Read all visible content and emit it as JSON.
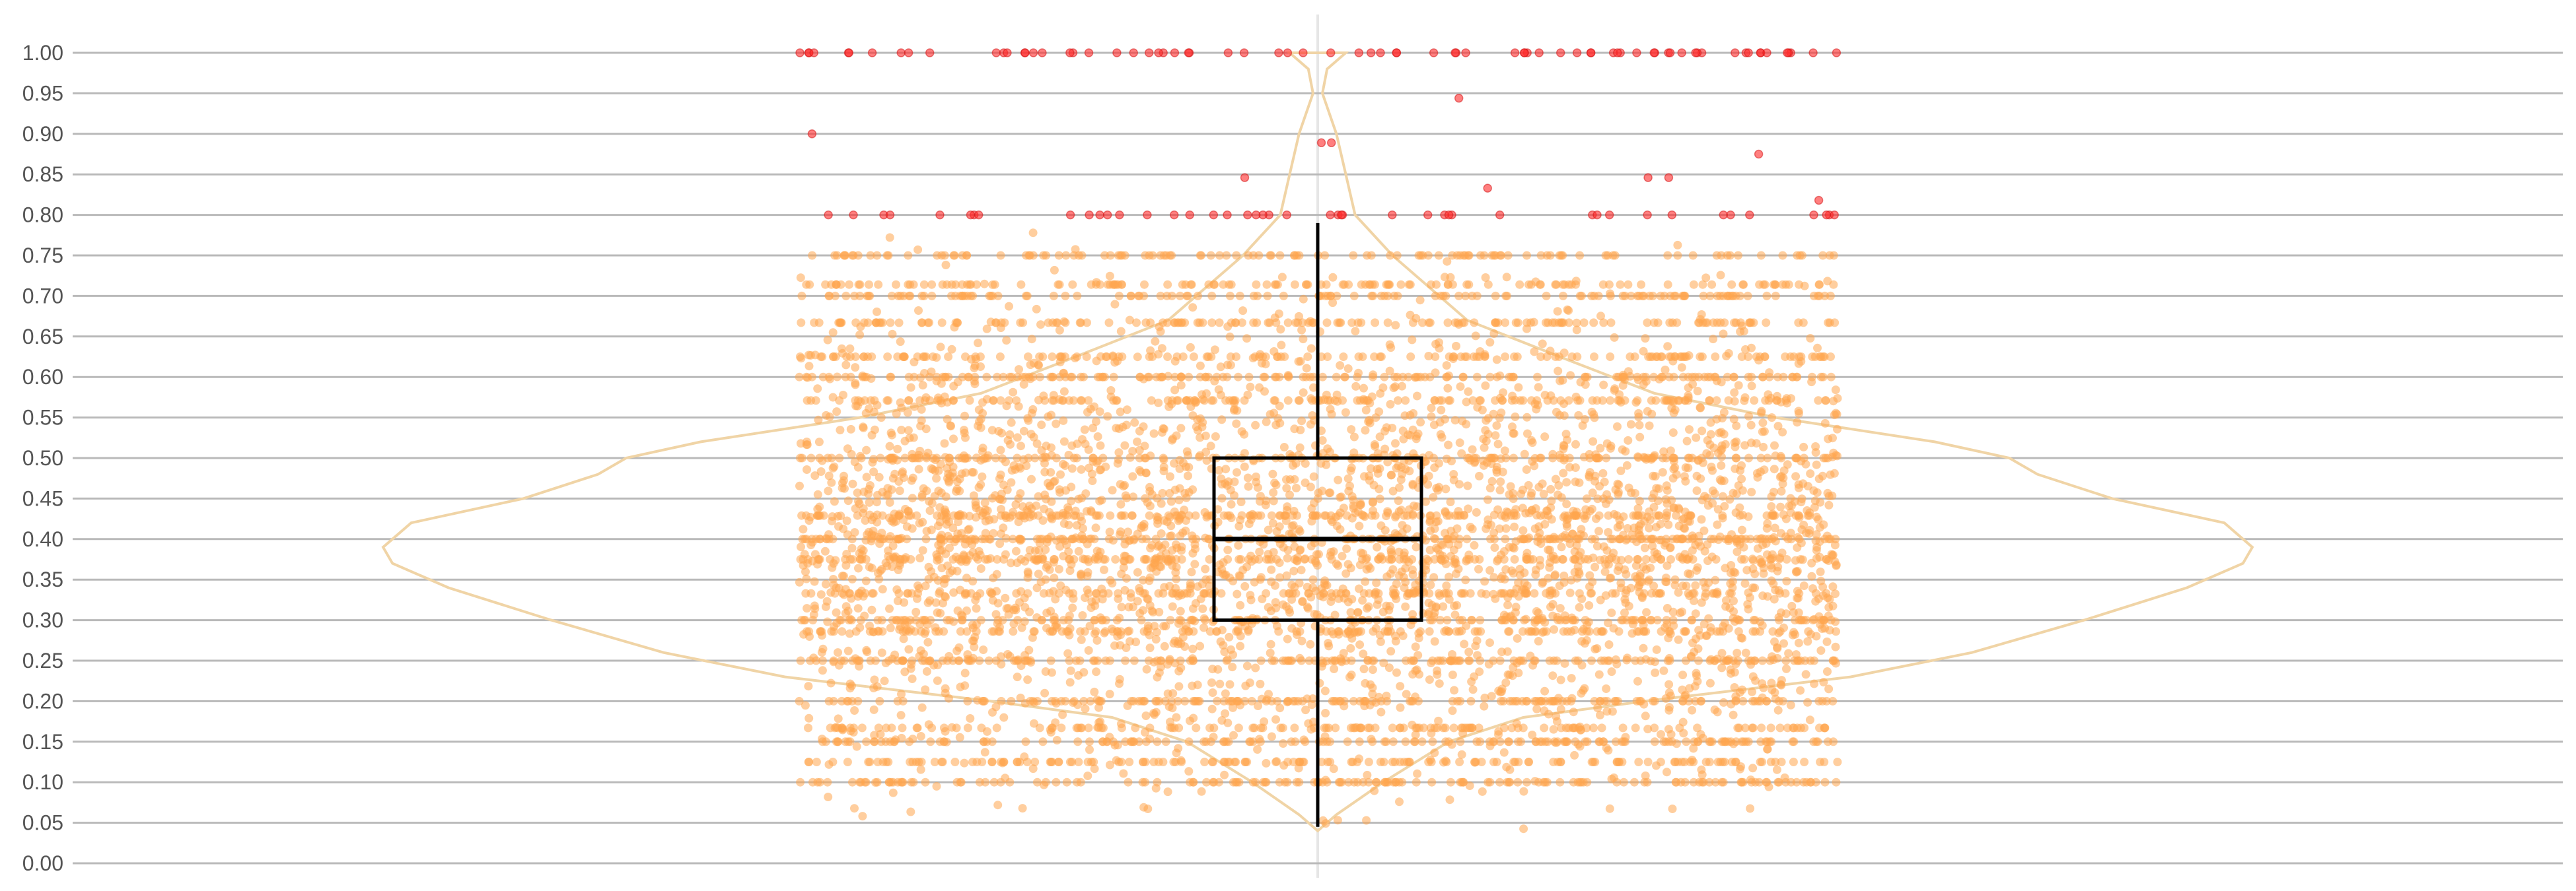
{
  "chart_data": {
    "type": "violin-box-strip",
    "title": "",
    "xlabel": "",
    "ylabel": "",
    "ylim": [
      0,
      1
    ],
    "y_ticks": [
      "0.00",
      "0.05",
      "0.10",
      "0.15",
      "0.20",
      "0.25",
      "0.30",
      "0.35",
      "0.40",
      "0.45",
      "0.50",
      "0.55",
      "0.60",
      "0.65",
      "0.70",
      "0.75",
      "0.80",
      "0.85",
      "0.90",
      "0.95",
      "1.00"
    ],
    "grid": "horizontal",
    "legend": "none",
    "box": {
      "median": 0.4,
      "q1": 0.3,
      "q3": 0.5,
      "whisker_low": 0.045,
      "whisker_high": 0.79
    },
    "violin_profile": [
      {
        "y": 0.04,
        "w": 0.0
      },
      {
        "y": 0.06,
        "w": 0.02
      },
      {
        "y": 0.1,
        "w": 0.07
      },
      {
        "y": 0.15,
        "w": 0.14
      },
      {
        "y": 0.18,
        "w": 0.22
      },
      {
        "y": 0.2,
        "w": 0.35
      },
      {
        "y": 0.23,
        "w": 0.57
      },
      {
        "y": 0.26,
        "w": 0.7
      },
      {
        "y": 0.3,
        "w": 0.82
      },
      {
        "y": 0.34,
        "w": 0.93
      },
      {
        "y": 0.37,
        "w": 0.99
      },
      {
        "y": 0.39,
        "w": 1.0
      },
      {
        "y": 0.42,
        "w": 0.97
      },
      {
        "y": 0.45,
        "w": 0.85
      },
      {
        "y": 0.48,
        "w": 0.77
      },
      {
        "y": 0.5,
        "w": 0.74
      },
      {
        "y": 0.52,
        "w": 0.66
      },
      {
        "y": 0.55,
        "w": 0.49
      },
      {
        "y": 0.58,
        "w": 0.36
      },
      {
        "y": 0.62,
        "w": 0.27
      },
      {
        "y": 0.67,
        "w": 0.16
      },
      {
        "y": 0.7,
        "w": 0.13
      },
      {
        "y": 0.75,
        "w": 0.08
      },
      {
        "y": 0.8,
        "w": 0.04
      },
      {
        "y": 0.85,
        "w": 0.03
      },
      {
        "y": 0.9,
        "w": 0.02
      },
      {
        "y": 0.95,
        "w": 0.005
      },
      {
        "y": 0.98,
        "w": 0.01
      },
      {
        "y": 1.0,
        "w": 0.03
      }
    ],
    "points": {
      "count": 6000,
      "distribution": "approx-normal",
      "mean": 0.4,
      "sd": 0.135,
      "range": [
        0.04,
        0.79
      ],
      "common_values": [
        0.1,
        0.125,
        0.15,
        0.167,
        0.2,
        0.25,
        0.286,
        0.3,
        0.333,
        0.375,
        0.4,
        0.429,
        0.5,
        0.571,
        0.6,
        0.625,
        0.667,
        0.7,
        0.714,
        0.75
      ],
      "x_spread": "uniform"
    },
    "outliers": {
      "count": 130,
      "values": [
        1.0,
        1.0,
        1.0,
        1.0,
        1.0,
        1.0,
        1.0,
        1.0,
        1.0,
        1.0,
        0.8,
        0.8,
        0.8,
        0.8,
        0.8,
        0.8,
        0.833,
        0.857,
        0.875,
        0.889,
        0.9,
        0.944,
        0.818,
        0.846,
        0.867
      ]
    },
    "colors": {
      "points": "#ffa54f",
      "outliers": "#ff2a2a",
      "violin": "#f0d4a6",
      "box": "#000000",
      "grid": "#b9b9b9",
      "center_line": "#e6e6e6",
      "tick_text": "#555555"
    }
  }
}
